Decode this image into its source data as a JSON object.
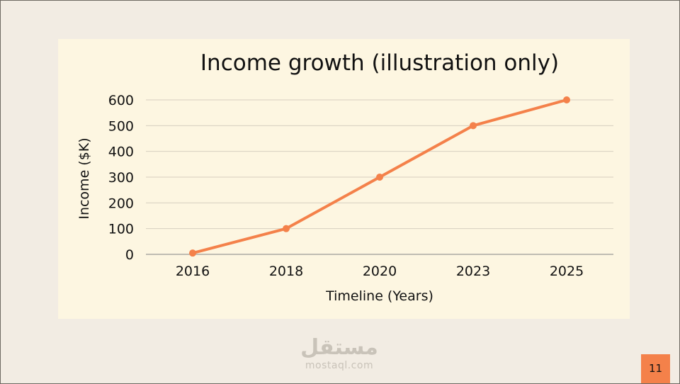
{
  "slide": {
    "page_number": "11",
    "watermark_arabic": "مستقل",
    "watermark_latin": "mostaql.com"
  },
  "colors": {
    "page_background": "#f2ece3",
    "panel_background": "#fdf6e1",
    "series": "#f4814a",
    "page_number_badge": "#f4814a"
  },
  "chart_data": {
    "type": "line",
    "title": "Income growth (illustration only)",
    "xlabel": "Timeline (Years)",
    "ylabel": "Income ($K)",
    "categories": [
      "2016",
      "2018",
      "2020",
      "2023",
      "2025"
    ],
    "series": [
      {
        "values": [
          5,
          100,
          300,
          500,
          600
        ]
      }
    ],
    "ylim": [
      0,
      600
    ],
    "yticks": [
      0,
      100,
      200,
      300,
      400,
      500,
      600
    ],
    "grid": "horizontal",
    "markers": true
  }
}
